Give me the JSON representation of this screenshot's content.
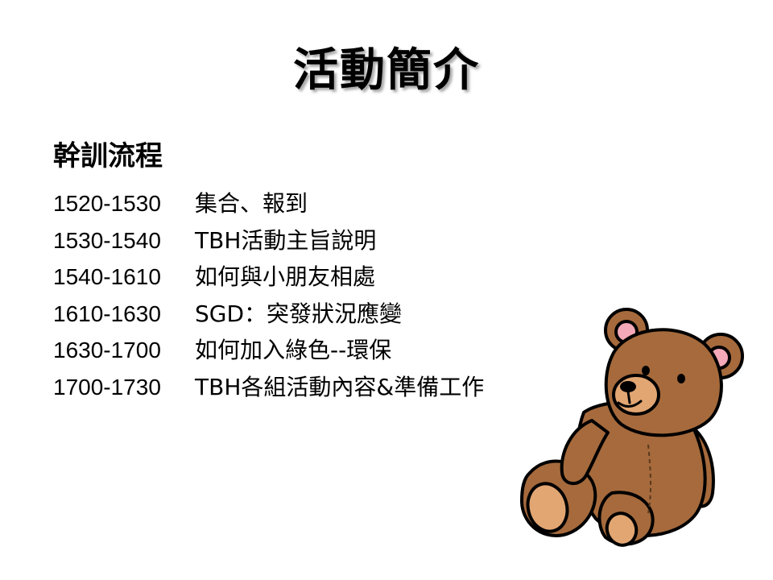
{
  "slide": {
    "title": "活動簡介",
    "section_heading": "幹訓流程",
    "schedule": [
      {
        "time": "1520-1530",
        "activity": "集合、報到"
      },
      {
        "time": "1530-1540",
        "activity": "TBH活動主旨說明"
      },
      {
        "time": "1540-1610",
        "activity": "如何與小朋友相處"
      },
      {
        "time": "1610-1630",
        "activity": "SGD：突發狀況應變"
      },
      {
        "time": "1630-1700",
        "activity": "如何加入綠色--環保"
      },
      {
        "time": "1700-1730",
        "activity": "TBH各組活動內容&準備工作"
      }
    ],
    "illustration": {
      "icon": "teddy-bear-icon",
      "fur_color": "#A66A3C",
      "muzzle_color": "#E2A673",
      "ear_inner_color": "#F4A9B8"
    }
  }
}
